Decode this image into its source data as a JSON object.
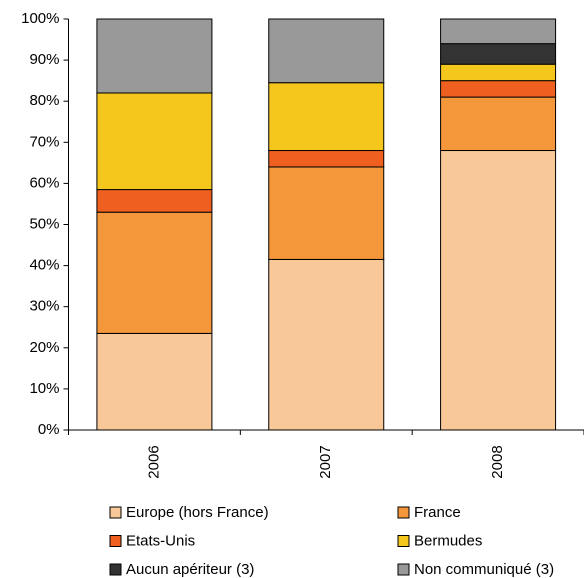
{
  "chart_data": {
    "type": "stacked_bar",
    "categories": [
      "2006",
      "2007",
      "2008"
    ],
    "series": [
      {
        "name": "Europe (hors France)",
        "color": "#f9c898",
        "values": [
          23.5,
          41.5,
          68
        ]
      },
      {
        "name": "France",
        "color": "#f4973a",
        "values": [
          29.5,
          22.5,
          13
        ]
      },
      {
        "name": "Etats-Unis",
        "color": "#ef5f1f",
        "values": [
          5.5,
          4,
          4
        ]
      },
      {
        "name": "Bermudes",
        "color": "#f5c61c",
        "values": [
          23.5,
          16.5,
          4
        ]
      },
      {
        "name": "Aucun apériteur (3)",
        "color": "#333333",
        "values": [
          0,
          0,
          5
        ]
      },
      {
        "name": "Non communiqué (3)",
        "color": "#999999",
        "values": [
          18,
          15.5,
          6
        ]
      }
    ],
    "ylim": [
      0,
      100
    ],
    "yticks": [
      {
        "value": 0,
        "label": "0%"
      },
      {
        "value": 10,
        "label": "10%"
      },
      {
        "value": 20,
        "label": "20%"
      },
      {
        "value": 30,
        "label": "30%"
      },
      {
        "value": 40,
        "label": "40%"
      },
      {
        "value": 50,
        "label": "50%"
      },
      {
        "value": 60,
        "label": "60%"
      },
      {
        "value": 70,
        "label": "70%"
      },
      {
        "value": 80,
        "label": "80%"
      },
      {
        "value": 90,
        "label": "90%"
      },
      {
        "value": 100,
        "label": "100%"
      }
    ],
    "grid": false
  }
}
